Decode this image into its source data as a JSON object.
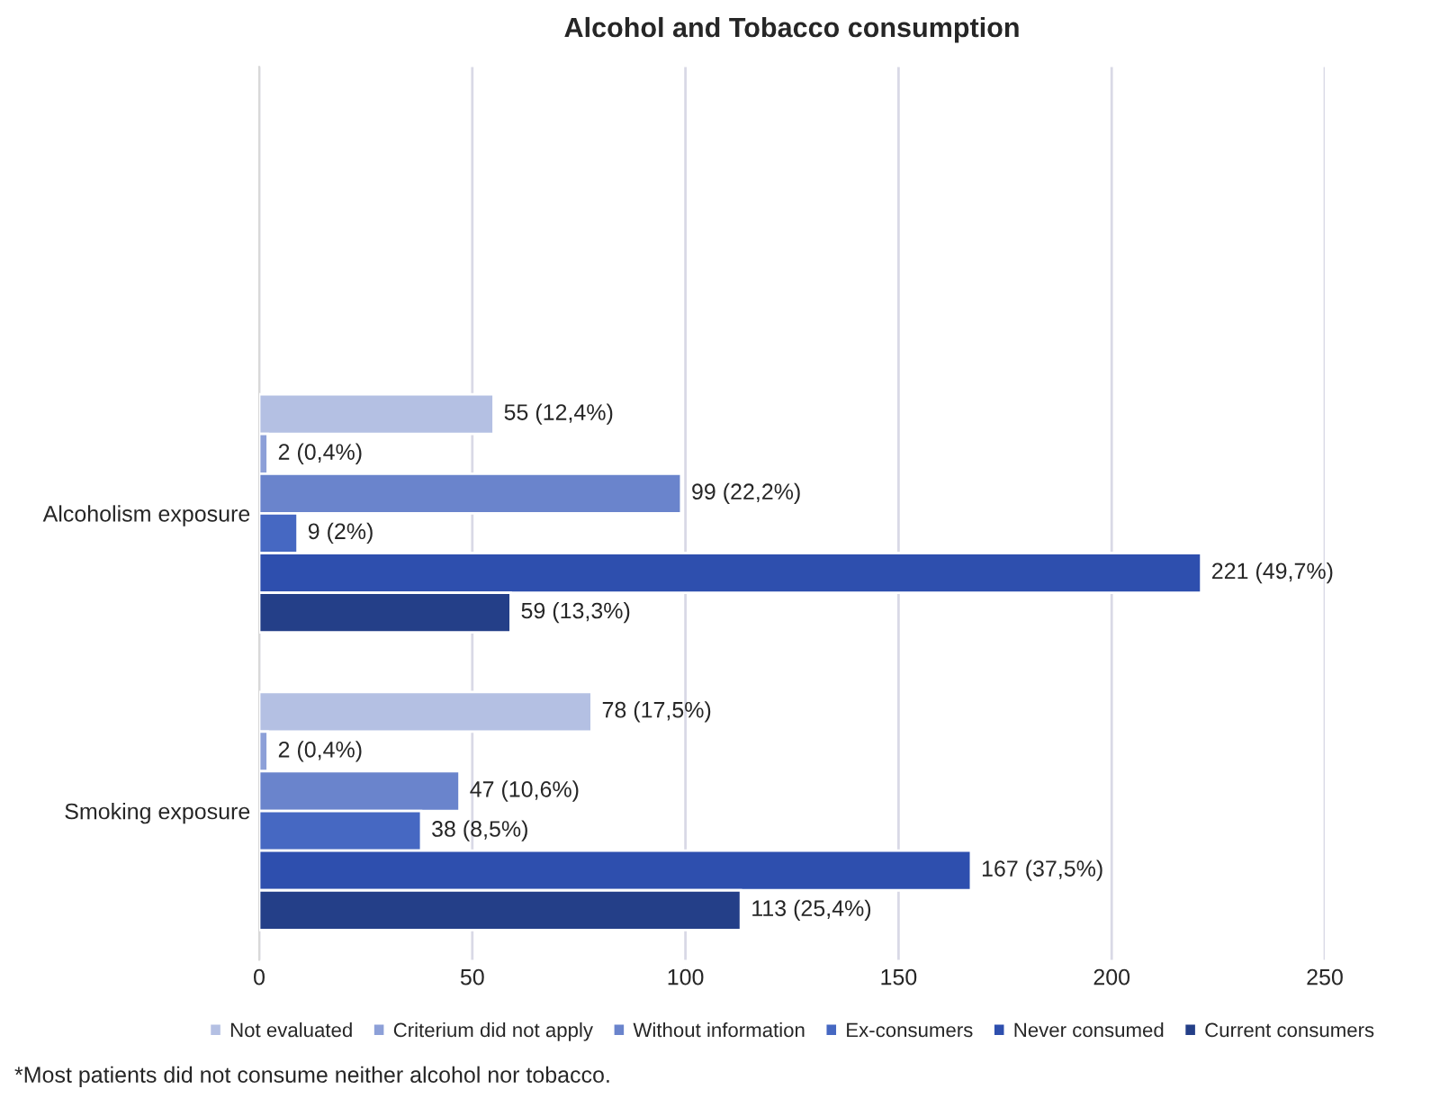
{
  "chart_data": {
    "type": "bar",
    "orientation": "horizontal",
    "title": "Alcohol and Tobacco consumption",
    "categories": [
      null,
      "Alcoholism exposure",
      "Smoking exposure"
    ],
    "series": [
      {
        "name": "Not evaluated",
        "color": "#b4c0e3",
        "values": [
          null,
          55,
          78
        ],
        "value_labels": [
          null,
          "55 (12,4%)",
          "78 (17,5%)"
        ]
      },
      {
        "name": "Criterium did not apply",
        "color": "#8da0d8",
        "values": [
          null,
          2,
          2
        ],
        "value_labels": [
          null,
          "2 (0,4%)",
          "2 (0,4%)"
        ]
      },
      {
        "name": "Without information",
        "color": "#6a84cc",
        "values": [
          null,
          99,
          47
        ],
        "value_labels": [
          null,
          "99 (22,2%)",
          "47 (10,6%)"
        ]
      },
      {
        "name": "Ex-consumers",
        "color": "#4668c2",
        "values": [
          null,
          9,
          38
        ],
        "value_labels": [
          null,
          "9 (2%)",
          "38 (8,5%)"
        ]
      },
      {
        "name": "Never consumed",
        "color": "#2e4fae",
        "values": [
          null,
          221,
          167
        ],
        "value_labels": [
          null,
          "221 (49,7%)",
          "167 (37,5%)"
        ]
      },
      {
        "name": "Current consumers",
        "color": "#243f88",
        "values": [
          null,
          59,
          113
        ],
        "value_labels": [
          null,
          "59 (13,3%)",
          "113 (25,4%)"
        ]
      }
    ],
    "xlim": [
      0,
      250
    ],
    "xticks": [
      0,
      50,
      100,
      150,
      200,
      250
    ],
    "grid": "x",
    "legend": "bottom",
    "annotations": [
      "*Most patients did not consume neither alcohol nor tobacco."
    ]
  }
}
